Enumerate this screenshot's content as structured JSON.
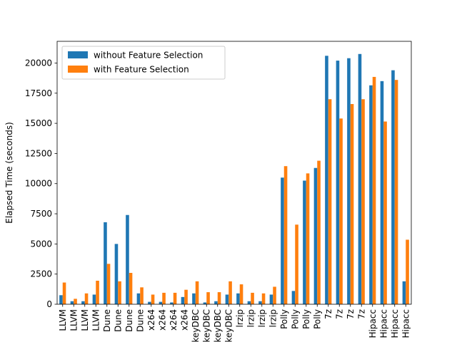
{
  "chart_data": {
    "type": "bar",
    "ylabel": "Elapsed Time (seconds)",
    "ylim": [
      0,
      21800
    ],
    "yticks": [
      0,
      2500,
      5000,
      7500,
      10000,
      12500,
      15000,
      17500,
      20000
    ],
    "ytick_labels": [
      "0",
      "2500",
      "5000",
      "7500",
      "10000",
      "12500",
      "15000",
      "17500",
      "20000"
    ],
    "legend_position": "top-left",
    "categories": [
      "LLVM",
      "LLVM",
      "LLVM",
      "LLVM",
      "Dune",
      "Dune",
      "Dune",
      "Dune",
      "x264",
      "x264",
      "x264",
      "x264",
      "keyDBC",
      "keyDBC",
      "keyDBC",
      "keyDBC",
      "lrzip",
      "lrzip",
      "lrzip",
      "lrzip",
      "Polly",
      "Polly",
      "Polly",
      "Polly",
      "7z",
      "7z",
      "7z",
      "7z",
      "Hipacc",
      "Hipacc",
      "Hipacc",
      "Hipacc"
    ],
    "series": [
      {
        "name": "without Feature Selection",
        "color": "#1f77b4",
        "values": [
          750,
          250,
          250,
          800,
          6800,
          5000,
          7400,
          900,
          200,
          200,
          150,
          600,
          900,
          150,
          250,
          800,
          900,
          250,
          250,
          800,
          10500,
          1100,
          10250,
          11300,
          20600,
          20200,
          20400,
          20750,
          18150,
          18500,
          19400,
          1900
        ]
      },
      {
        "name": "with Feature Selection",
        "color": "#ff7f0e",
        "values": [
          1800,
          450,
          900,
          1950,
          3350,
          1900,
          2600,
          1400,
          800,
          950,
          950,
          1200,
          1900,
          1000,
          1000,
          1900,
          1650,
          950,
          900,
          1450,
          11450,
          6600,
          10850,
          11900,
          17000,
          15400,
          16600,
          17000,
          18850,
          15150,
          18600,
          5350
        ]
      }
    ]
  }
}
